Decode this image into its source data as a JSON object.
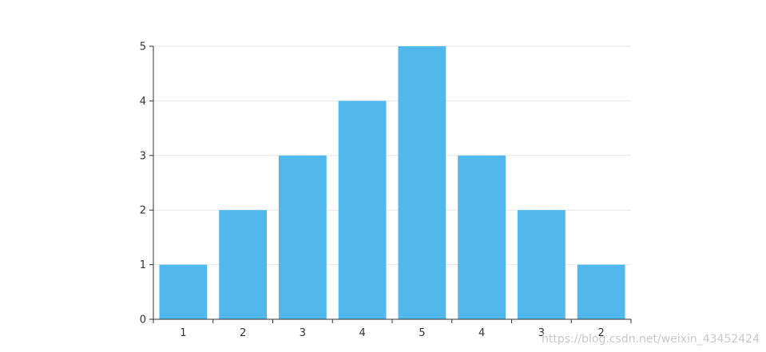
{
  "chart_data": {
    "type": "bar",
    "categories": [
      "1",
      "2",
      "3",
      "4",
      "5",
      "4",
      "3",
      "2"
    ],
    "values": [
      1,
      2,
      3,
      4,
      5,
      3,
      2,
      1
    ],
    "ylim": [
      0,
      5
    ],
    "yticks": [
      "0",
      "1",
      "2",
      "3",
      "4",
      "5"
    ],
    "grid": true,
    "bar_color": "#51b8ee",
    "grid_color": "#e6e6e6",
    "axis_color": "#333333"
  },
  "watermark": "https://blog.csdn.net/weixin_43452424"
}
